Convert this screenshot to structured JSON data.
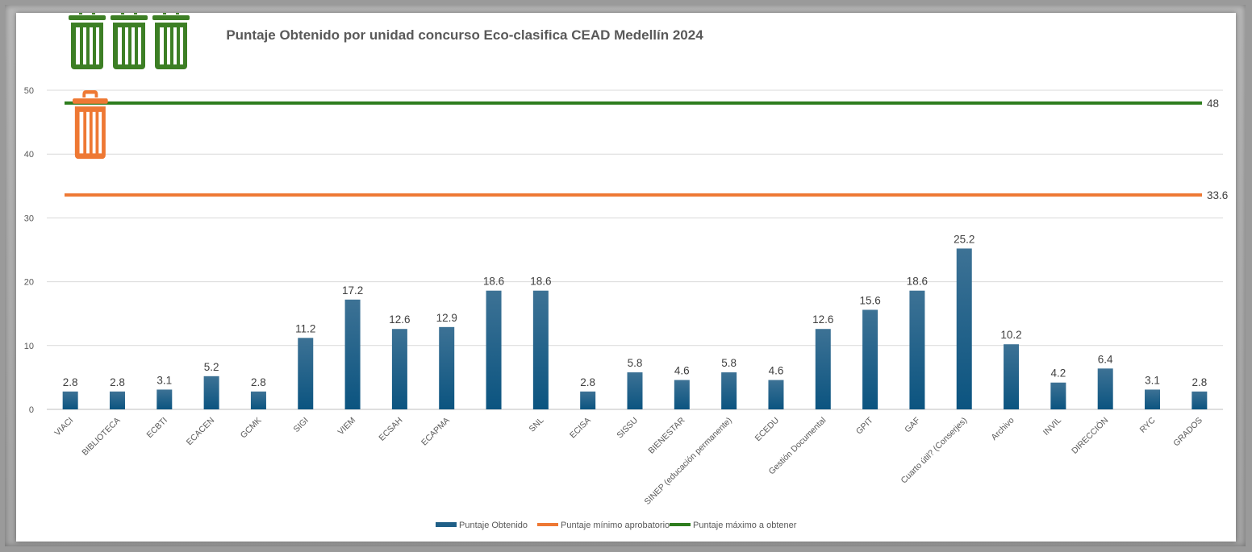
{
  "chart_data": {
    "type": "bar",
    "title": "Puntaje Obtenido por unidad concurso Eco-clasifica CEAD Medellín 2024",
    "xlabel": "",
    "ylabel": "",
    "ylim": [
      0,
      50
    ],
    "yticks": [
      0,
      10,
      20,
      30,
      40,
      50
    ],
    "grid": true,
    "legend_position": "bottom",
    "categories": [
      "VIACI",
      "BIBLIOTECA",
      "ECBTI",
      "ECACEN",
      "GCMK",
      "SIGI",
      "VIEM",
      "ECSAH",
      "ECAPMA",
      "",
      "SNL",
      "ECISA",
      "SISSU",
      "BIENESTAR",
      "SINEP (educación permanente)",
      "ECEDU",
      "Gestión Documental",
      "GPIT",
      "GAF",
      "Cuarto útil? (Conserjes)",
      "Archivo",
      "INVIL",
      "DIRECCIÓN",
      "RYC",
      "GRADOS"
    ],
    "series": [
      {
        "name": "Puntaje Obtenido",
        "color": "#1f5f87",
        "values": [
          2.8,
          2.8,
          3.1,
          5.2,
          2.8,
          11.2,
          17.2,
          12.6,
          12.9,
          18.6,
          18.6,
          2.8,
          5.8,
          4.6,
          5.8,
          4.6,
          12.6,
          15.6,
          18.6,
          25.2,
          10.2,
          4.2,
          6.4,
          3.1,
          2.8
        ]
      }
    ],
    "reference_lines": [
      {
        "name": "Puntaje mínimo aprobatorio",
        "value": 33.6,
        "label": "33.6",
        "color": "#ee7833"
      },
      {
        "name": "Puntaje máximo a obtener",
        "value": 48,
        "label": "48",
        "color": "#2e7d1e"
      }
    ],
    "icons": {
      "max_icon": "trash-can-icon",
      "max_icon_count": 3,
      "max_icon_color": "#3d7f25",
      "min_icon": "trash-can-icon",
      "min_icon_count": 1,
      "min_icon_color": "#ee7833"
    }
  }
}
